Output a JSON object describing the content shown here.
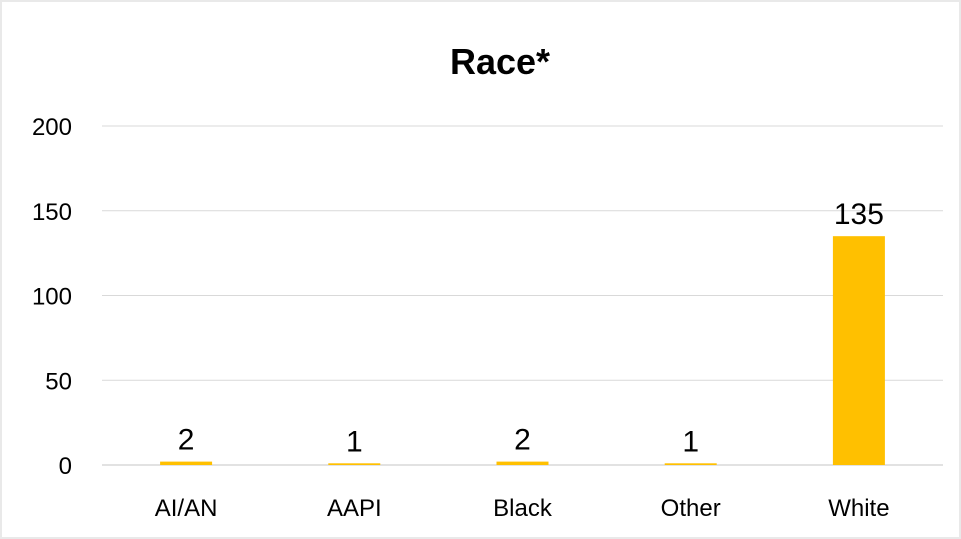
{
  "chart_data": {
    "type": "bar",
    "title": "Race*",
    "xlabel": "",
    "ylabel": "",
    "categories": [
      "AI/AN",
      "AAPI",
      "Black",
      "Other",
      "White"
    ],
    "values": [
      2,
      1,
      2,
      1,
      135
    ],
    "data_labels": [
      "2",
      "1",
      "2",
      "1",
      "135"
    ],
    "ylim": [
      0,
      200
    ],
    "yticks": [
      0,
      50,
      100,
      150,
      200
    ],
    "ytick_labels": [
      "0",
      "50",
      "100",
      "150",
      "200"
    ],
    "grid": true,
    "legend": "none",
    "colors": {
      "bar": "#ffc000",
      "grid": "#d9d9d9",
      "axis": "#d9d9d9"
    }
  }
}
